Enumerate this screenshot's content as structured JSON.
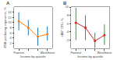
{
  "chart_data": [
    {
      "type": "line",
      "title": "A",
      "categories": [
        "Poorest",
        null,
        null,
        "Wealthiest"
      ],
      "values": [
        10.5,
        8.0,
        4.5,
        5.5
      ],
      "ci_low": [
        7.0,
        5.0,
        1.0,
        3.0
      ],
      "ci_high": [
        14.0,
        11.0,
        8.0,
        8.5
      ],
      "x_label": "Income by quartile",
      "y_label": "ESB-producing organisms, %",
      "ylim": [
        0,
        16
      ],
      "yticks": [
        2,
        4,
        6,
        8,
        10,
        12,
        14
      ],
      "grid": false
    },
    {
      "type": "line",
      "title": "B",
      "categories": [
        "Poorest",
        null,
        null,
        "Wealthiest"
      ],
      "values": [
        6.2,
        5.0,
        1.8,
        3.2
      ],
      "ci_low": [
        2.0,
        2.0,
        0.1,
        0.8
      ],
      "ci_high": [
        9.8,
        8.0,
        3.8,
        5.8
      ],
      "x_label": "Income by quartile",
      "y_label": ">BB* CFU, %",
      "ylim": [
        0,
        10
      ],
      "yticks": [
        2,
        4,
        6,
        8,
        10
      ],
      "grid": false
    }
  ]
}
